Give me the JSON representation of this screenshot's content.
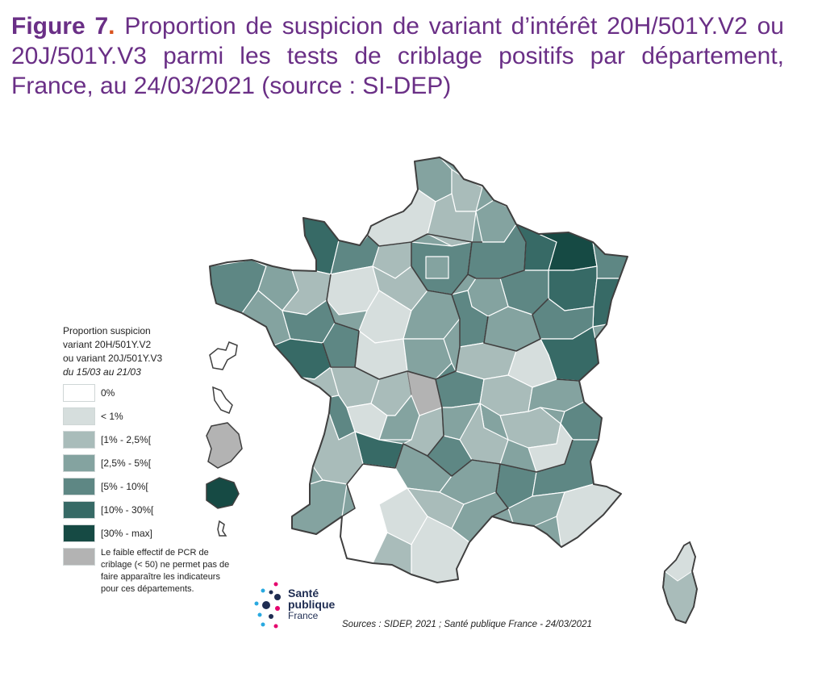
{
  "title": {
    "label": "Figure 7",
    "dot": ".",
    "text": " Proportion de suspicion de variant d’intérêt 20H/501Y.V2 ou 20J/501Y.V3 parmi les tests de criblage positifs par département, France, au 24/03/2021 (source : SI-DEP)"
  },
  "legend": {
    "title_lines": [
      "Proportion suspicion",
      "variant 20H/501Y.V2",
      "ou variant 20J/501Y.V3"
    ],
    "period": "du 15/03 au 21/03",
    "classes": [
      {
        "label": "0%",
        "color": "#ffffff"
      },
      {
        "label": "< 1%",
        "color": "#d6dedd"
      },
      {
        "label": "[1% - 2,5%[",
        "color": "#a9bcba"
      },
      {
        "label": "[2,5% - 5%[",
        "color": "#84a3a0"
      },
      {
        "label": "[5% - 10%[",
        "color": "#5e8784"
      },
      {
        "label": "[10% - 30%[",
        "color": "#376a66"
      },
      {
        "label": "[30% - max]",
        "color": "#164a44"
      }
    ],
    "na": {
      "label": "Le faible effectif de PCR de criblage (< 50) ne permet pas de faire apparaître les indicateurs pour ces départements.",
      "color": "#b3b3b3"
    }
  },
  "logo": {
    "line1": "Santé",
    "line2": "publique",
    "line3": "France"
  },
  "sources": "Sources : SIDEP, 2021 ; Santé publique France - 24/03/2021",
  "colors": {
    "title": "#6a2f86",
    "title_dot": "#d9531e",
    "border": "#3f3f3f"
  }
}
